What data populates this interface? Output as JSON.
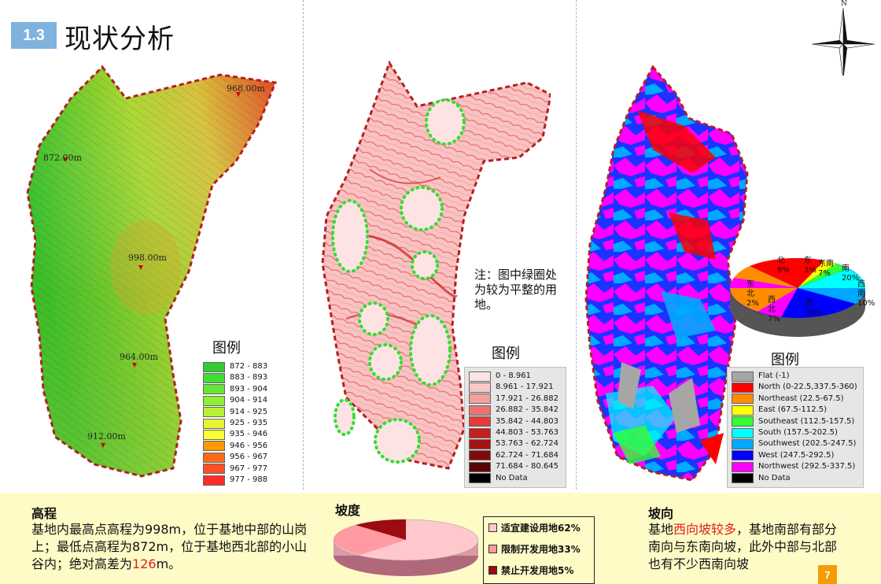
{
  "header": {
    "section_number": "1.3",
    "title": "现状分析"
  },
  "compass": {
    "label": "N"
  },
  "elevation_map": {
    "labels": [
      "968.00m",
      "872.00m",
      "998.00m",
      "964.00m",
      "912.00m"
    ],
    "legend_title": "图例",
    "legend": [
      {
        "label": "872 - 883",
        "color": "#33cc33"
      },
      {
        "label": "883 - 893",
        "color": "#44dd33"
      },
      {
        "label": "893 - 904",
        "color": "#66e633"
      },
      {
        "label": "904 - 914",
        "color": "#8cf033"
      },
      {
        "label": "914 - 925",
        "color": "#b8f033"
      },
      {
        "label": "925 - 935",
        "color": "#e6f533"
      },
      {
        "label": "935 - 946",
        "color": "#ffff33"
      },
      {
        "label": "946 - 956",
        "color": "#ff9900"
      },
      {
        "label": "956 - 967",
        "color": "#ff6a1a"
      },
      {
        "label": "967 - 977",
        "color": "#ff4d26"
      },
      {
        "label": "977 - 988",
        "color": "#ff2a2a"
      }
    ]
  },
  "slope_map": {
    "note": "注：图中绿圈处为较为平整的用地。",
    "legend_title": "图例",
    "legend": [
      {
        "label": "0 - 8.961",
        "color": "#fde3e3"
      },
      {
        "label": "8.961 - 17.921",
        "color": "#f9c7c7"
      },
      {
        "label": "17.921 - 26.882",
        "color": "#f2a0a0"
      },
      {
        "label": "26.882 - 35.842",
        "color": "#ec7373"
      },
      {
        "label": "35.842 - 44.803",
        "color": "#e63b3b"
      },
      {
        "label": "44.803 - 53.763",
        "color": "#c81d1d"
      },
      {
        "label": "53.763 - 62.724",
        "color": "#a51212"
      },
      {
        "label": "62.724 - 71.684",
        "color": "#800b0b"
      },
      {
        "label": "71.684 - 80.645",
        "color": "#5a0505"
      },
      {
        "label": "No Data",
        "color": "#000000"
      }
    ]
  },
  "aspect_map": {
    "legend_title": "图例",
    "legend": [
      {
        "label": "Flat (-1)",
        "color": "#a6a6a6"
      },
      {
        "label": "North (0-22.5,337.5-360)",
        "color": "#ff0000"
      },
      {
        "label": "Northeast (22.5-67.5)",
        "color": "#ff8c00"
      },
      {
        "label": "East (67.5-112.5)",
        "color": "#ffff00"
      },
      {
        "label": "Southeast (112.5-157.5)",
        "color": "#33ff33"
      },
      {
        "label": "South (157.5-202.5)",
        "color": "#00ffff"
      },
      {
        "label": "Southwest (202.5-247.5)",
        "color": "#00a8ff"
      },
      {
        "label": "West (247.5-292.5)",
        "color": "#0000ff"
      },
      {
        "label": "Northwest (292.5-337.5)",
        "color": "#ff00ff"
      },
      {
        "label": "No Data",
        "color": "#000000"
      }
    ],
    "pie_labels": {
      "north": "北9%",
      "east": "东3%",
      "southeast": "东南7%",
      "south": "南20%",
      "southwest": "西南10%",
      "west": "西30%",
      "northwest": "西北7%",
      "northeast": "东北2%"
    }
  },
  "bottom": {
    "elevation": {
      "title": "高程",
      "text_before": "基地内最高点高程为998m，位于基地中部的山岗上；最低点高程为872m，位于基地西北部的小山谷内；绝对高差为",
      "highlight": "126",
      "text_after": "m。"
    },
    "slope": {
      "title": "坡度",
      "legend": [
        {
          "label": "适宜建设用地62%",
          "color": "#ffc8cc"
        },
        {
          "label": "限制开发用地33%",
          "color": "#ff9aa2"
        },
        {
          "label": "禁止开发用地5%",
          "color": "#9c0b12"
        }
      ]
    },
    "aspect": {
      "title": "坡向",
      "text_before": "基地",
      "highlight": "西向坡较多",
      "text_after": "，基地南部有部分南向与东南向坡，此外中部与北部也有不少西南向坡"
    }
  },
  "page_number": "7"
}
